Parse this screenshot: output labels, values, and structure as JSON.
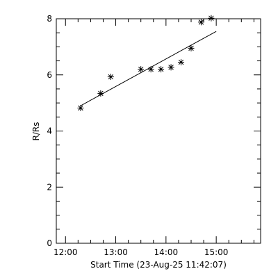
{
  "chart_data": {
    "type": "scatter",
    "xlabel": "Start Time (23-Aug-25 11:42:07)",
    "ylabel": "R/Rs",
    "xlim": [
      "11:49",
      "15:53"
    ],
    "ylim": [
      0,
      8
    ],
    "x_major_ticks": [
      {
        "t": "12:00",
        "label": "12:00"
      },
      {
        "t": "13:00",
        "label": "13:00"
      },
      {
        "t": "14:00",
        "label": "14:00"
      },
      {
        "t": "15:00",
        "label": "15:00"
      }
    ],
    "y_major_ticks": [
      {
        "v": 0,
        "label": "0"
      },
      {
        "v": 2,
        "label": "2"
      },
      {
        "v": 4,
        "label": "4"
      },
      {
        "v": 6,
        "label": "6"
      },
      {
        "v": 8,
        "label": "8"
      }
    ],
    "series": [
      {
        "marker": "asterisk",
        "points": [
          {
            "x": "12:18",
            "y": 4.82
          },
          {
            "x": "12:42",
            "y": 5.34
          },
          {
            "x": "12:54",
            "y": 5.93
          },
          {
            "x": "13:30",
            "y": 6.2
          },
          {
            "x": "13:42",
            "y": 6.2
          },
          {
            "x": "13:54",
            "y": 6.2
          },
          {
            "x": "14:06",
            "y": 6.27
          },
          {
            "x": "14:18",
            "y": 6.45
          },
          {
            "x": "14:30",
            "y": 6.95
          },
          {
            "x": "14:42",
            "y": 7.88
          },
          {
            "x": "14:54",
            "y": 8.02
          }
        ]
      }
    ],
    "fit_line": {
      "x": [
        "12:18",
        "15:00"
      ],
      "y": [
        4.9,
        7.55
      ]
    },
    "grid": false,
    "colors": {
      "foreground": "#000000",
      "background": "#ffffff"
    }
  }
}
